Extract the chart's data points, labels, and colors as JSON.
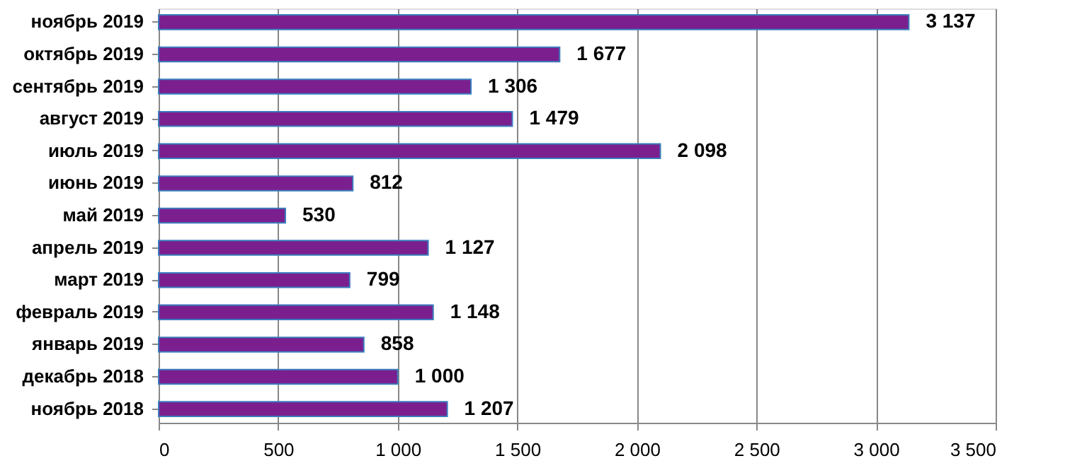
{
  "chart_data": {
    "type": "bar",
    "orientation": "horizontal",
    "categories": [
      "ноябрь 2019",
      "октябрь 2019",
      "сентябрь 2019",
      "август 2019",
      "июль 2019",
      "июнь 2019",
      "май 2019",
      "апрель 2019",
      "март 2019",
      "февраль 2019",
      "январь 2019",
      "декабрь 2018",
      "ноябрь 2018"
    ],
    "values": [
      3137,
      1677,
      1306,
      1479,
      2098,
      812,
      530,
      1127,
      799,
      1148,
      858,
      1000,
      1207
    ],
    "value_labels": [
      "3 137",
      "1 677",
      "1 306",
      "1 479",
      "2 098",
      "812",
      "530",
      "1 127",
      "799",
      "1 148",
      "858",
      "1 000",
      "1 207"
    ],
    "color": "#7b1f8f",
    "xlim": [
      0,
      3500
    ],
    "xticks": [
      0,
      500,
      {
        "value": 1000,
        "label": "1 000"
      },
      {
        "value": 1500,
        "label": "1 500"
      },
      {
        "value": 2000,
        "label": "2 000"
      },
      {
        "value": 2500,
        "label": "2 500"
      },
      {
        "value": 3000,
        "label": "3 000"
      },
      {
        "value": 3500,
        "label": "3 500"
      }
    ],
    "grid": "x"
  }
}
